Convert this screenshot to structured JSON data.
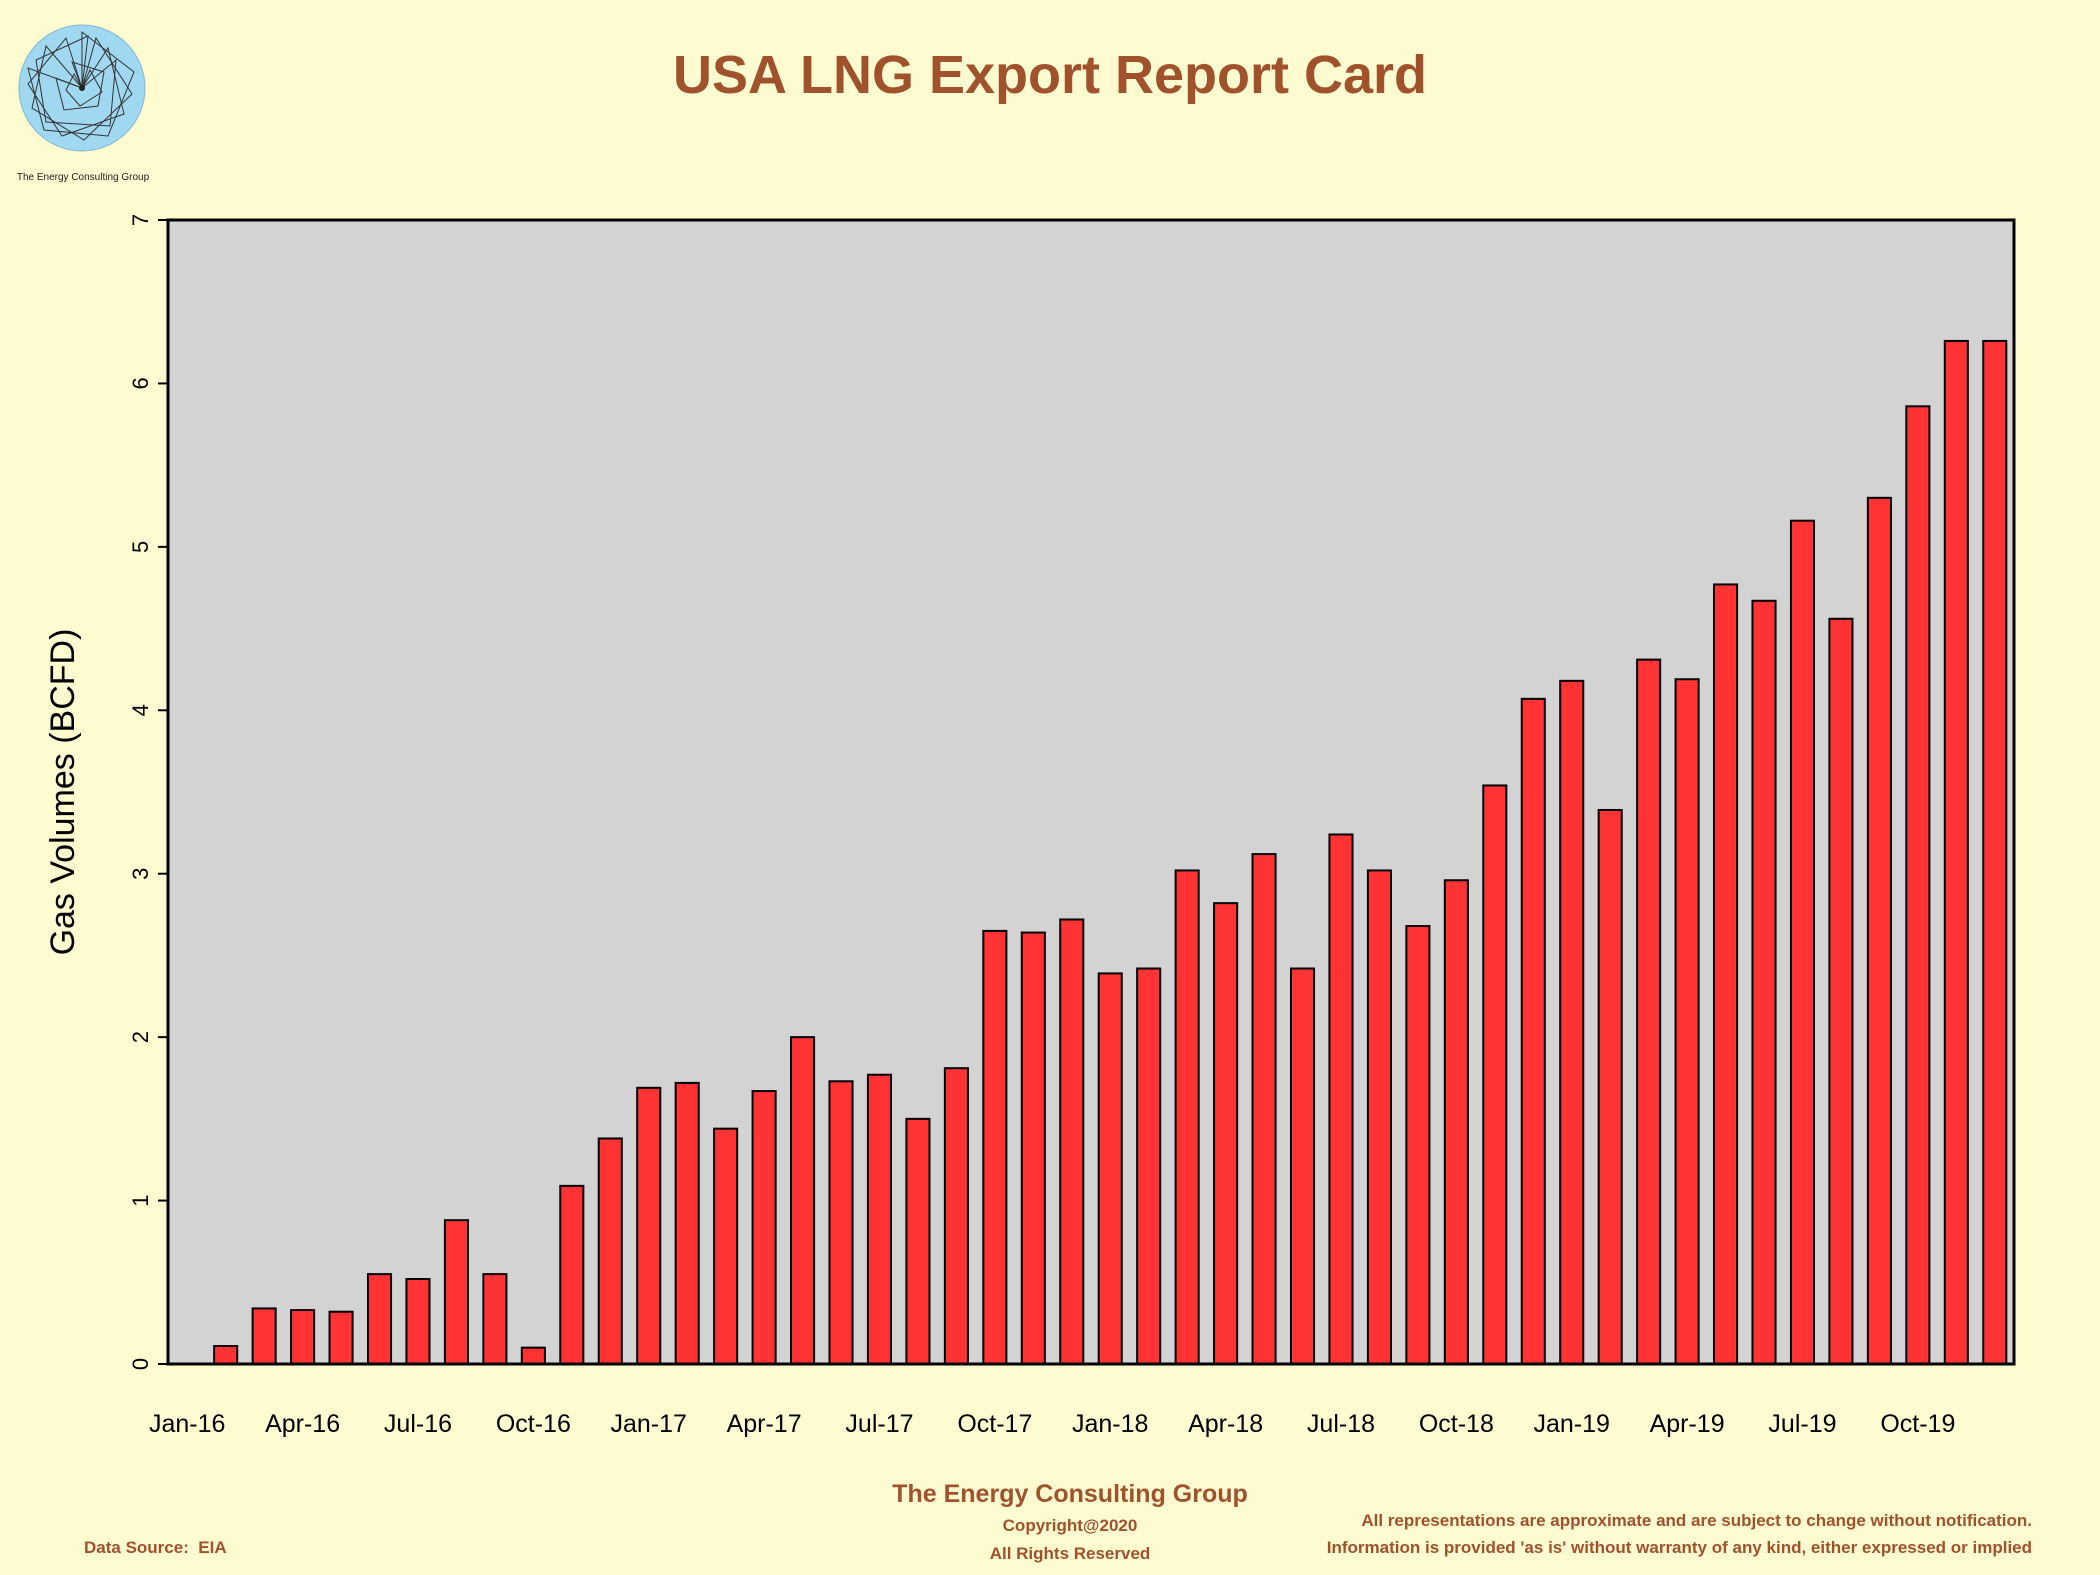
{
  "header": {
    "title": "USA LNG Export Report Card"
  },
  "logo": {
    "caption": "The Energy Consulting Group",
    "icon": "spiral-logo-icon"
  },
  "footer": {
    "company": "The Energy Consulting Group",
    "copyright": "Copyright@2020",
    "rights": "All Rights Reserved",
    "data_source": "Data Source:  EIA",
    "disclaimer_1": "All representations are approximate and are subject to change without notification.",
    "disclaimer_2": "Information is provided 'as is' without warranty of any kind, either expressed or implied"
  },
  "colors": {
    "bar": "#ff3333",
    "plot_bg": "#d3d3d3",
    "page_bg": "#fffbd1",
    "title": "#a0522d"
  },
  "chart_data": {
    "type": "bar",
    "title": "USA LNG Export Report Card",
    "xlabel": "",
    "ylabel": "Gas Volumes (BCFD)",
    "ylim": [
      0,
      7
    ],
    "yticks": [
      0,
      1,
      2,
      3,
      4,
      5,
      6,
      7
    ],
    "grid": false,
    "categories": [
      "Jan-16",
      "Feb-16",
      "Mar-16",
      "Apr-16",
      "May-16",
      "Jun-16",
      "Jul-16",
      "Aug-16",
      "Sep-16",
      "Oct-16",
      "Nov-16",
      "Dec-16",
      "Jan-17",
      "Feb-17",
      "Mar-17",
      "Apr-17",
      "May-17",
      "Jun-17",
      "Jul-17",
      "Aug-17",
      "Sep-17",
      "Oct-17",
      "Nov-17",
      "Dec-17",
      "Jan-18",
      "Feb-18",
      "Mar-18",
      "Apr-18",
      "May-18",
      "Jun-18",
      "Jul-18",
      "Aug-18",
      "Sep-18",
      "Oct-18",
      "Nov-18",
      "Dec-18",
      "Jan-19",
      "Feb-19",
      "Mar-19",
      "Apr-19",
      "May-19",
      "Jun-19",
      "Jul-19",
      "Aug-19",
      "Sep-19",
      "Oct-19",
      "Nov-19",
      "Dec-19"
    ],
    "xtick_labels": [
      "Jan-16",
      "Apr-16",
      "Jul-16",
      "Oct-16",
      "Jan-17",
      "Apr-17",
      "Jul-17",
      "Oct-17",
      "Jan-18",
      "Apr-18",
      "Jul-18",
      "Oct-18",
      "Jan-19",
      "Apr-19",
      "Jul-19",
      "Oct-19"
    ],
    "values": [
      0,
      0.11,
      0.34,
      0.33,
      0.32,
      0.55,
      0.52,
      0.88,
      0.55,
      0.1,
      1.09,
      1.38,
      1.69,
      1.72,
      1.44,
      1.67,
      2.0,
      1.73,
      1.77,
      1.5,
      1.81,
      2.65,
      2.64,
      2.72,
      2.39,
      2.42,
      3.02,
      2.82,
      3.12,
      2.42,
      3.24,
      3.02,
      2.68,
      2.96,
      3.54,
      4.07,
      4.18,
      3.39,
      4.31,
      4.19,
      4.77,
      4.67,
      5.16,
      4.56,
      5.3,
      5.86,
      6.26,
      6.26
    ]
  }
}
